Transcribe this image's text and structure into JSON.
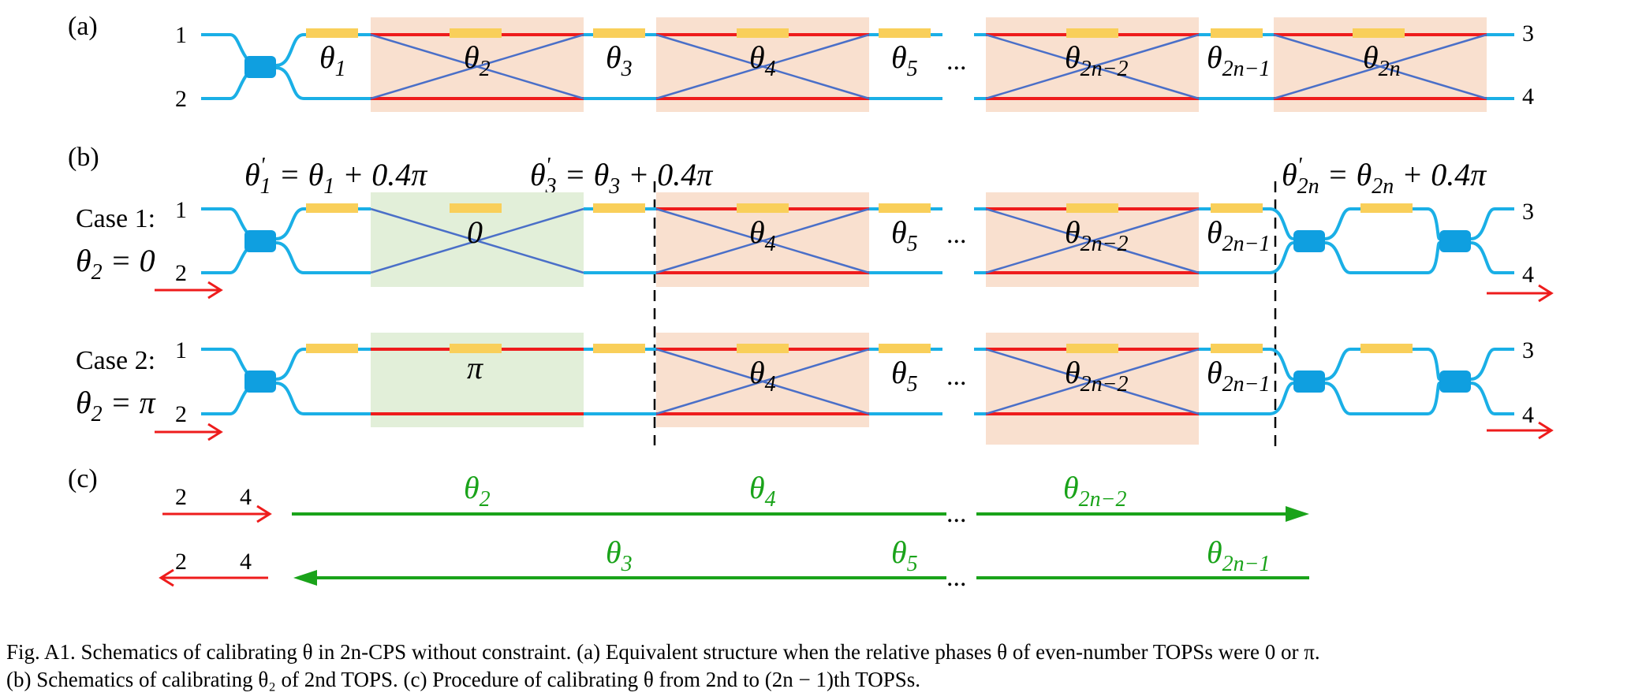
{
  "panels": {
    "a": "(a)",
    "b": "(b)",
    "c": "(c)"
  },
  "ports": {
    "p1": "1",
    "p2": "2",
    "p3": "3",
    "p4": "4"
  },
  "ellipsis": "...",
  "cases": {
    "case1": {
      "label": "Case 1:",
      "cond_pre": "θ",
      "cond_sub": "2",
      "cond_post": " = 0",
      "value": "0"
    },
    "case2": {
      "label": "Case 2:",
      "cond_pre": "θ",
      "cond_sub": "2",
      "cond_post": " = π",
      "value": "π"
    }
  },
  "thetas": {
    "sym": "θ",
    "t1": "1",
    "t2": "2",
    "t3": "3",
    "t4": "4",
    "t5": "5",
    "t2n2": "2n−2",
    "t2n1": "2n−1",
    "t2n": "2n"
  },
  "equations": {
    "eq1": {
      "lhs": "θ",
      "prime": "'",
      "sub": "1",
      "rhs": " = θ",
      "rhs_sub": "1",
      "tail": " + 0.4π"
    },
    "eq3": {
      "lhs": "θ",
      "prime": "'",
      "sub": "3",
      "rhs": " = θ",
      "rhs_sub": "3",
      "tail": " + 0.4π"
    },
    "eq2n": {
      "lhs": "θ",
      "prime": "'",
      "sub": "2n",
      "rhs": " = θ",
      "rhs_sub": "2n",
      "tail": " + 0.4π"
    }
  },
  "colors": {
    "waveguide": "#1aafe6",
    "red": "#ee1c1c",
    "cross": "#4a6fc8",
    "heater": "#f9cf5a",
    "orange_box": "#f9e0cf",
    "green_box": "#e2efd9",
    "green_arrow": "#1aa31a",
    "coupler": "#0f9fe0"
  },
  "caption": {
    "line1": "Fig. A1.  Schematics of calibrating θ in 2n-CPS without constraint. (a) Equivalent structure when the relative phases θ of even-number TOPSs were 0 or π.",
    "line2": "(b) Schematics of calibrating θ₂ of 2nd TOPS. (c) Procedure of calibrating θ from 2nd to (2n − 1)th TOPSs."
  }
}
